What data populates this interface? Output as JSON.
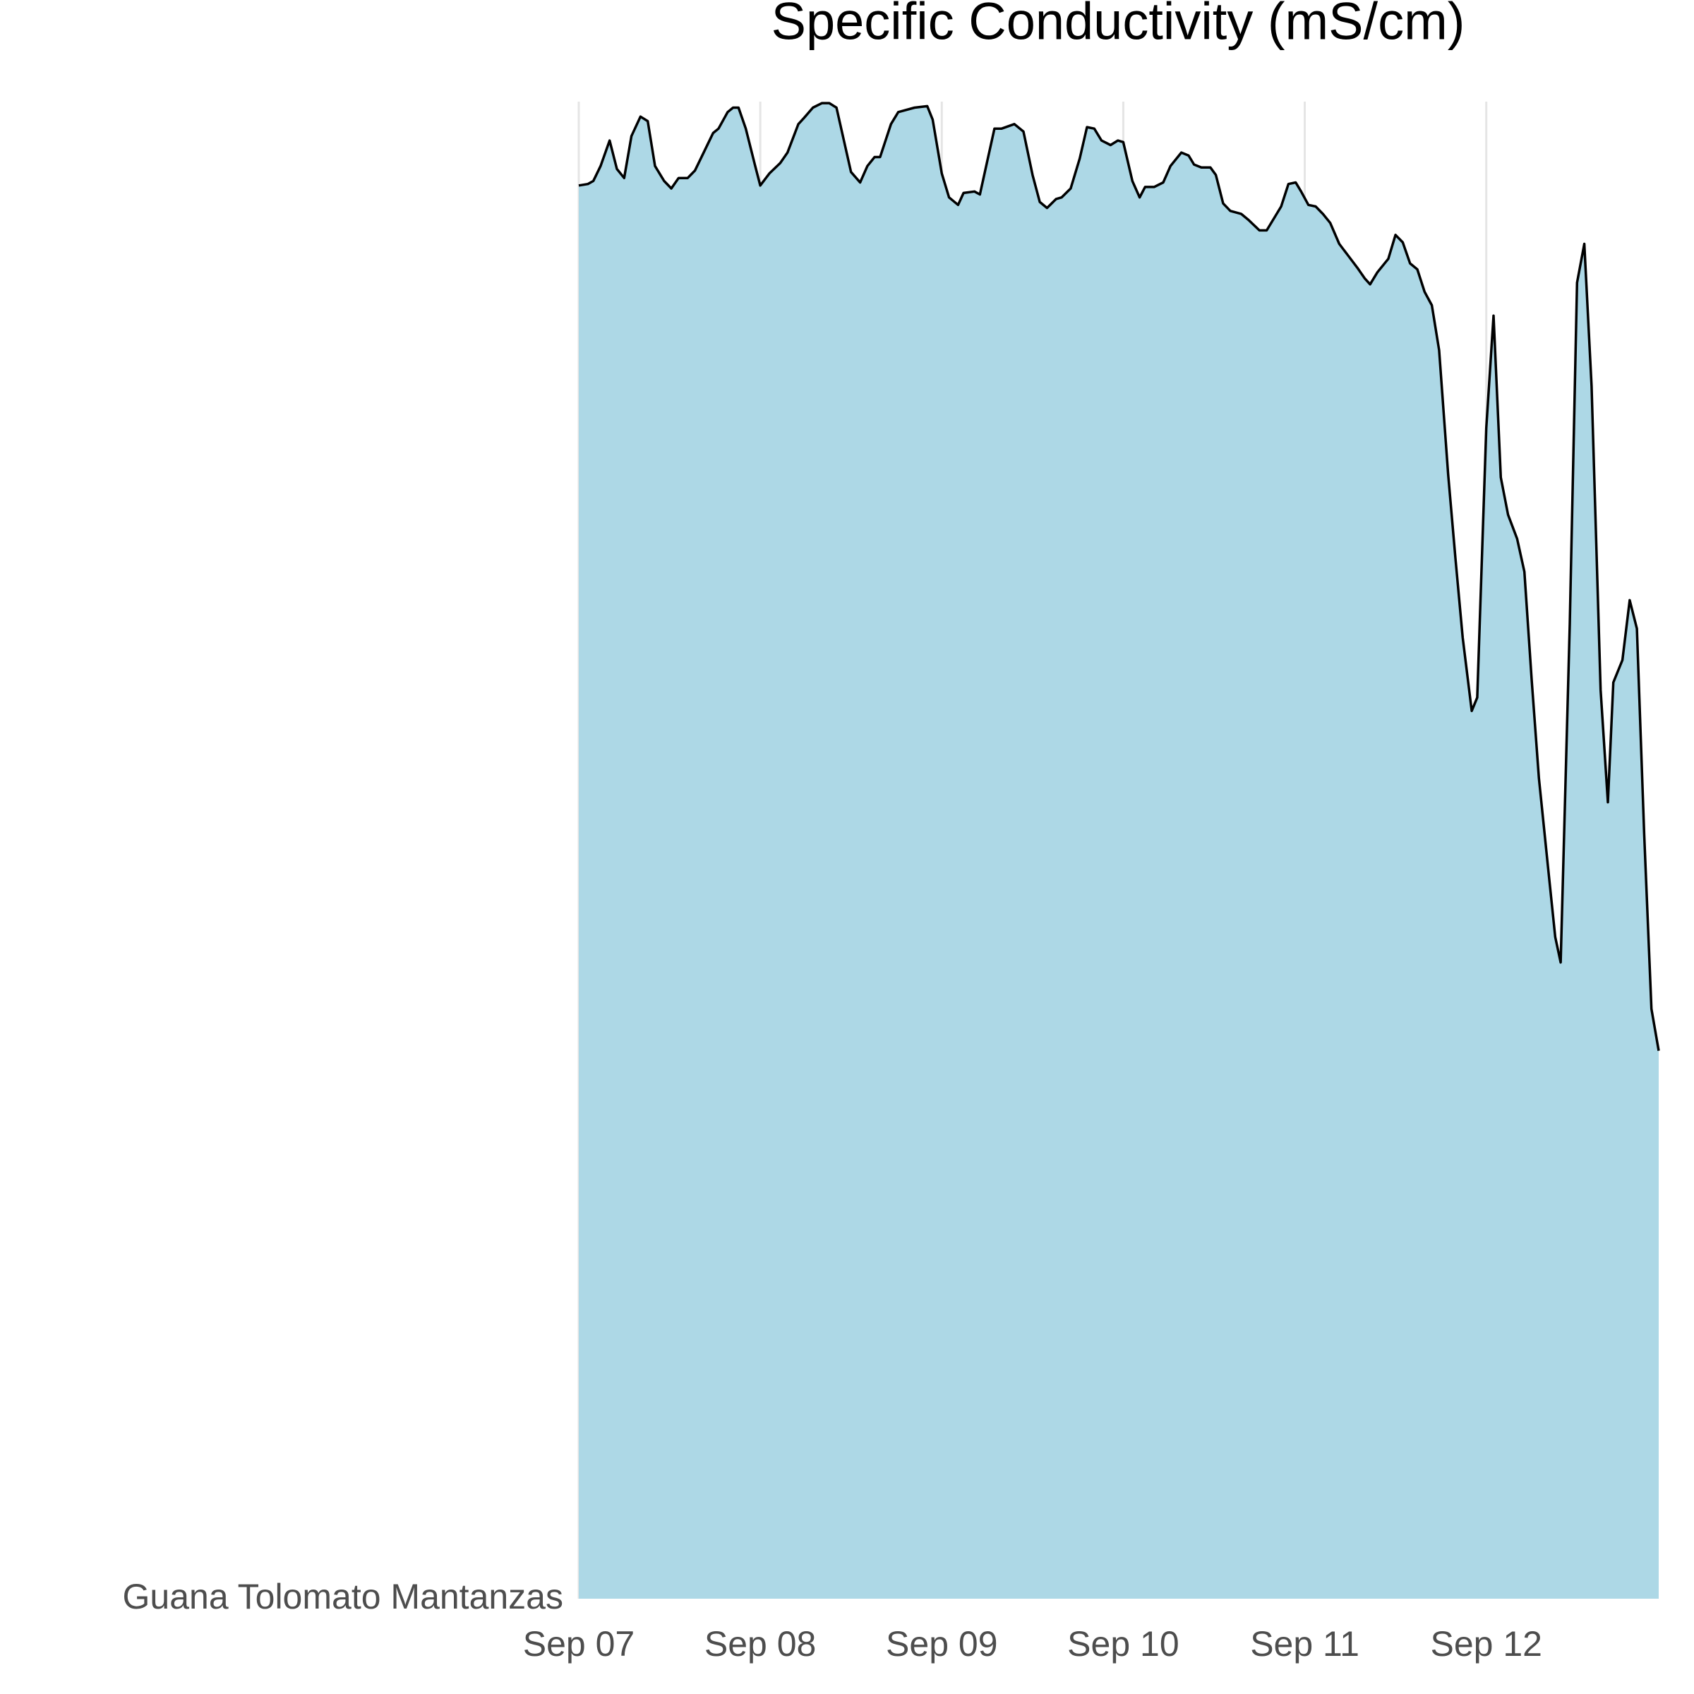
{
  "chart_data": {
    "type": "area",
    "title": "Specific Conductivity (mS/cm)",
    "x": [
      0,
      0.05,
      0.08,
      0.12,
      0.17,
      0.21,
      0.25,
      0.29,
      0.34,
      0.38,
      0.42,
      0.47,
      0.51,
      0.55,
      0.6,
      0.64,
      0.7,
      0.74,
      0.77,
      0.82,
      0.85,
      0.88,
      0.92,
      0.97,
      1.0,
      1.05,
      1.11,
      1.15,
      1.21,
      1.24,
      1.29,
      1.34,
      1.38,
      1.42,
      1.5,
      1.55,
      1.59,
      1.63,
      1.66,
      1.72,
      1.76,
      1.85,
      1.92,
      1.95,
      2.0,
      2.04,
      2.09,
      2.12,
      2.18,
      2.21,
      2.25,
      2.29,
      2.33,
      2.4,
      2.45,
      2.5,
      2.54,
      2.58,
      2.63,
      2.66,
      2.71,
      2.76,
      2.8,
      2.84,
      2.88,
      2.93,
      2.97,
      3.0,
      3.05,
      3.09,
      3.12,
      3.17,
      3.22,
      3.26,
      3.32,
      3.36,
      3.39,
      3.43,
      3.48,
      3.51,
      3.55,
      3.59,
      3.65,
      3.69,
      3.75,
      3.79,
      3.83,
      3.87,
      3.91,
      3.95,
      3.98,
      4.02,
      4.06,
      4.1,
      4.14,
      4.19,
      4.24,
      4.29,
      4.33,
      4.36,
      4.4,
      4.46,
      4.5,
      4.54,
      4.58,
      4.62,
      4.66,
      4.7,
      4.74,
      4.79,
      4.83,
      4.87,
      4.92,
      4.95,
      5.0,
      5.04,
      5.08,
      5.12,
      5.17,
      5.21,
      5.25,
      5.29,
      5.34,
      5.38,
      5.41,
      5.46,
      5.5,
      5.54,
      5.58,
      5.63,
      5.67,
      5.7,
      5.75,
      5.79,
      5.83,
      5.87,
      5.91,
      5.95
    ],
    "series": [
      {
        "name": "Guana Tolomato Mantanzas",
        "color": "#add8e6",
        "line_color": "#000000",
        "values": [
          94.4,
          94.5,
          94.7,
          95.7,
          97.4,
          95.5,
          94.9,
          97.7,
          99.0,
          98.7,
          95.7,
          94.7,
          94.2,
          94.9,
          94.9,
          95.4,
          96.9,
          97.9,
          98.2,
          99.3,
          99.6,
          99.6,
          98.2,
          95.8,
          94.4,
          95.2,
          95.9,
          96.6,
          98.5,
          98.9,
          99.6,
          99.9,
          99.9,
          99.6,
          95.3,
          94.6,
          95.7,
          96.3,
          96.3,
          98.5,
          99.3,
          99.6,
          99.7,
          98.8,
          95.2,
          93.6,
          93.1,
          93.9,
          94.0,
          93.8,
          96.0,
          98.2,
          98.2,
          98.5,
          98.0,
          95.1,
          93.3,
          92.9,
          93.5,
          93.6,
          94.2,
          96.2,
          98.3,
          98.2,
          97.4,
          97.1,
          97.4,
          97.3,
          94.7,
          93.6,
          94.3,
          94.3,
          94.6,
          95.7,
          96.6,
          96.4,
          95.8,
          95.6,
          95.6,
          95.1,
          93.2,
          92.7,
          92.5,
          92.1,
          91.4,
          91.4,
          92.2,
          93.0,
          94.5,
          94.6,
          94.0,
          93.1,
          93.0,
          92.5,
          91.9,
          90.5,
          89.7,
          88.9,
          88.2,
          87.8,
          88.6,
          89.5,
          91.1,
          90.6,
          89.2,
          88.8,
          87.3,
          86.4,
          83.4,
          75.1,
          69.5,
          64.2,
          59.3,
          60.2,
          78.2,
          85.7,
          74.9,
          72.4,
          70.8,
          68.6,
          61.4,
          54.8,
          48.9,
          44.2,
          42.5,
          65.1,
          87.9,
          90.5,
          81.0,
          60.7,
          53.2,
          61.2,
          62.7,
          66.7,
          64.8,
          51.1,
          39.4,
          36.6
        ]
      }
    ],
    "xlim": [
      0,
      5.95
    ],
    "xticks": [
      {
        "value": 0,
        "label": "Sep 07"
      },
      {
        "value": 1,
        "label": "Sep 08"
      },
      {
        "value": 2,
        "label": "Sep 09"
      },
      {
        "value": 3,
        "label": "Sep 10"
      },
      {
        "value": 4,
        "label": "Sep 11"
      },
      {
        "value": 5,
        "label": "Sep 12"
      }
    ],
    "ylim": [
      0,
      100
    ],
    "grid": true
  }
}
